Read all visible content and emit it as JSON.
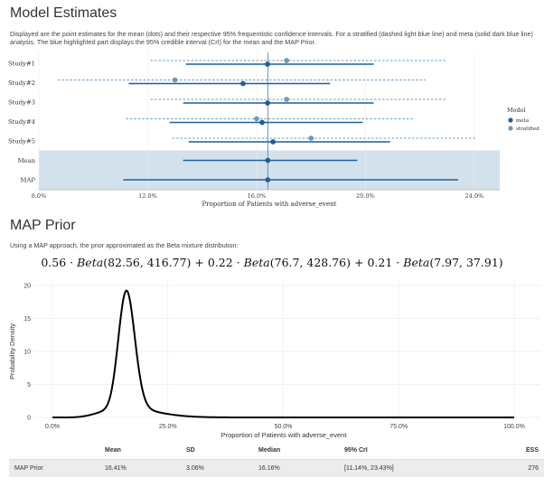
{
  "model_estimates": {
    "title": "Model Estimates",
    "description": "Displayed are the point estimates for the mean (dots) and their respective 95% frequentistic confidence intervals. For a stratified (dashed light blue line) and meta (solid dark blue line) analysis. The blue highlighted part displays the 95% credible interval (CrI) for the mean and the MAP Prior."
  },
  "map_prior": {
    "title": "MAP Prior",
    "description": "Using a MAP approach, the prior approximated as the Beta mixture distribution:",
    "formula": {
      "terms": [
        {
          "weight": "0.56",
          "params": "(82.56, 416.77)"
        },
        {
          "weight": "0.22",
          "params": "(76.7, 428.76)"
        },
        {
          "weight": "0.21",
          "params": "(7.97, 37.91)"
        }
      ],
      "func": "Beta",
      "op": "+",
      "times": "·"
    }
  },
  "colors": {
    "meta": "#1f5f99",
    "stratified": "#6c9bbd",
    "band": "#d3e1ec",
    "refline": "#4a7fa8"
  },
  "chart_data": [
    {
      "type": "forest",
      "xlabel": "Proportion of Patients with adverse_event",
      "xlim": [
        0.08,
        0.25
      ],
      "xticks": [
        0.08,
        0.12,
        0.16,
        0.2,
        0.24
      ],
      "xtick_labels": [
        "8.0%",
        "12.0%",
        "16.0%",
        "20.0%",
        "24.0%"
      ],
      "reference_line": 0.1641,
      "legend": {
        "title": "Model",
        "position": "right",
        "entries": [
          "meta",
          "stratified"
        ]
      },
      "rows": [
        {
          "label": "Study#1",
          "meta": {
            "est": 0.164,
            "lo": 0.134,
            "hi": 0.203
          },
          "stratified": {
            "est": 0.171,
            "lo": 0.121,
            "hi": 0.23
          }
        },
        {
          "label": "Study#2",
          "meta": {
            "est": 0.155,
            "lo": 0.113,
            "hi": 0.187
          },
          "stratified": {
            "est": 0.13,
            "lo": 0.087,
            "hi": 0.222
          }
        },
        {
          "label": "Study#3",
          "meta": {
            "est": 0.164,
            "lo": 0.133,
            "hi": 0.203
          },
          "stratified": {
            "est": 0.171,
            "lo": 0.121,
            "hi": 0.23
          }
        },
        {
          "label": "Study#4",
          "meta": {
            "est": 0.162,
            "lo": 0.128,
            "hi": 0.199
          },
          "stratified": {
            "est": 0.16,
            "lo": 0.112,
            "hi": 0.218
          }
        },
        {
          "label": "Study#5",
          "meta": {
            "est": 0.166,
            "lo": 0.135,
            "hi": 0.209
          },
          "stratified": {
            "est": 0.18,
            "lo": 0.129,
            "hi": 0.241
          }
        },
        {
          "label": "Mean",
          "meta": {
            "est": 0.1641,
            "lo": 0.133,
            "hi": 0.197
          }
        },
        {
          "label": "MAP",
          "meta": {
            "est": 0.1641,
            "lo": 0.111,
            "hi": 0.234
          }
        }
      ],
      "highlight_rows": [
        "Mean",
        "MAP"
      ]
    },
    {
      "type": "line",
      "xlabel": "Proportion of Patients with adverse_event",
      "ylabel": "Probability Density",
      "xlim": [
        0,
        1
      ],
      "ylim": [
        0,
        20
      ],
      "xticks": [
        0,
        0.25,
        0.5,
        0.75,
        1.0
      ],
      "xtick_labels": [
        "0.0%",
        "25.0%",
        "50.0%",
        "75.0%",
        "100.0%"
      ],
      "yticks": [
        0,
        5,
        10,
        15,
        20
      ],
      "ytick_labels": [
        "0",
        "5",
        "10",
        "15",
        "20"
      ],
      "grid": true,
      "mixture": [
        {
          "w": 0.56,
          "a": 82.56,
          "b": 416.77
        },
        {
          "w": 0.22,
          "a": 76.7,
          "b": 428.76
        },
        {
          "w": 0.21,
          "a": 7.97,
          "b": 37.91
        }
      ]
    }
  ],
  "estimates_table": {
    "headers": [
      "",
      "Mean",
      "SD",
      "Median",
      "95% CrI",
      "ESS"
    ],
    "rows": [
      [
        "MAP Prior",
        "16.41%",
        "3.06%",
        "16.16%",
        "[11.14%, 23.43%]",
        "276"
      ]
    ]
  }
}
